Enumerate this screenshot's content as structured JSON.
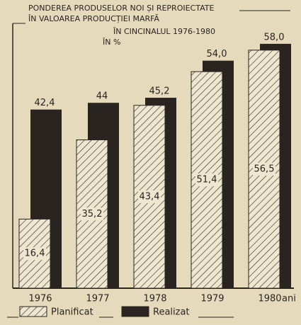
{
  "chart_data": {
    "type": "bar",
    "title": [
      "PONDEREA PRODUSELOR NOI ȘI REPROIECTATE",
      "ÎN VALOAREA PRODUCȚIEI MARFĂ",
      "ÎN CINCINALUL 1976-1980",
      "ÎN %"
    ],
    "categories": [
      "1976",
      "1977",
      "1978",
      "1979",
      "1980"
    ],
    "x_label": "ani",
    "series": [
      {
        "name": "Planificat",
        "color": "#2a2420",
        "pattern": "hatch",
        "values": [
          16.4,
          35.2,
          43.4,
          51.4,
          56.5
        ],
        "value_labels": [
          "16,4",
          "35,2",
          "43,4",
          "51,4",
          "56,5"
        ]
      },
      {
        "name": "Realizat",
        "color": "#2a2420",
        "pattern": "solid",
        "values": [
          42.4,
          44,
          45.2,
          54.0,
          58.0
        ],
        "value_labels": [
          "42,4",
          "44",
          "45,2",
          "54,0",
          "58,0"
        ]
      }
    ]
  }
}
